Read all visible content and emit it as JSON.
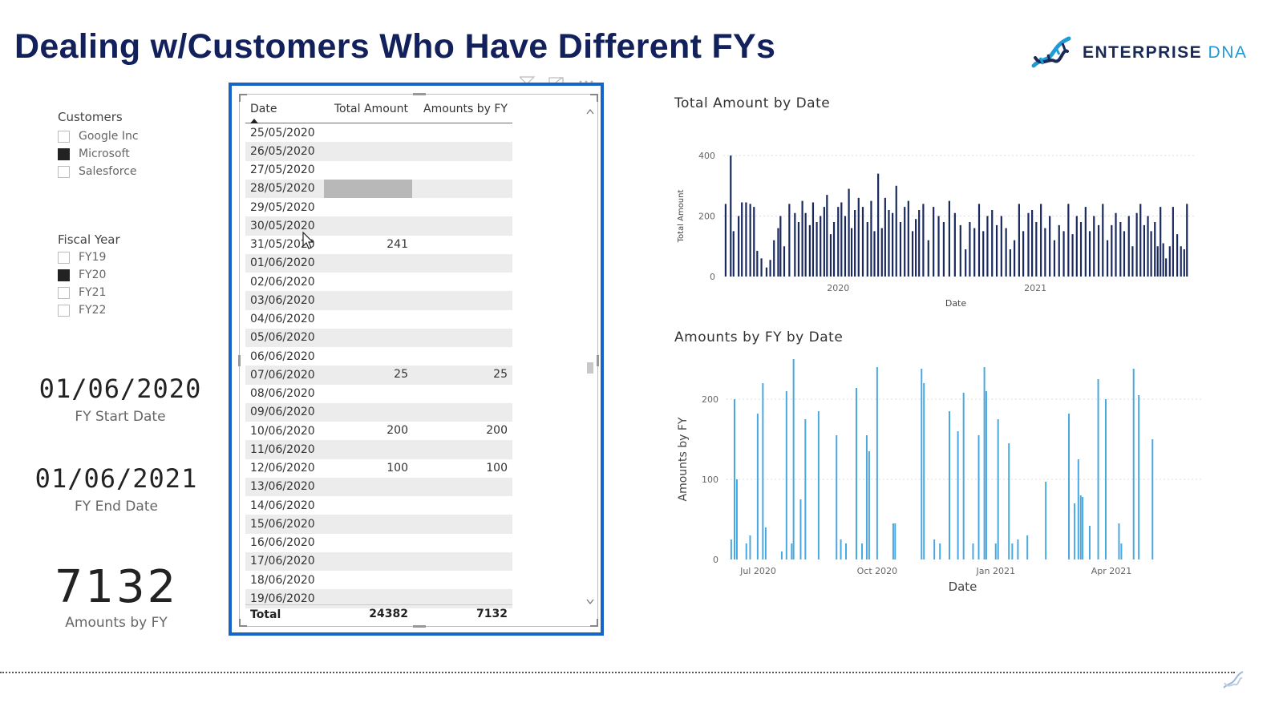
{
  "page": {
    "title": "Dealing w/Customers Who Have Different FYs"
  },
  "brand": {
    "name_bold": "ENTERPRISE",
    "name_light": "DNA",
    "primary_color": "#1a2a55",
    "accent_color": "#1e9bd7"
  },
  "slicers": {
    "customers": {
      "title": "Customers",
      "items": [
        {
          "label": "Google Inc",
          "checked": false
        },
        {
          "label": "Microsoft",
          "checked": true
        },
        {
          "label": "Salesforce",
          "checked": false
        }
      ]
    },
    "fiscal_year": {
      "title": "Fiscal Year",
      "items": [
        {
          "label": "FY19",
          "checked": false
        },
        {
          "label": "FY20",
          "checked": true
        },
        {
          "label": "FY21",
          "checked": false
        },
        {
          "label": "FY22",
          "checked": false
        }
      ]
    }
  },
  "cards": {
    "fy_start": {
      "value": "01/06/2020",
      "label": "FY Start Date"
    },
    "fy_end": {
      "value": "01/06/2021",
      "label": "FY End Date"
    },
    "kpi": {
      "value": "7132",
      "label": "Amounts by FY"
    }
  },
  "table": {
    "headers": {
      "date": "Date",
      "total": "Total Amount",
      "fy": "Amounts by FY"
    },
    "rows": [
      {
        "date": "25/05/2020",
        "total": "",
        "fy": ""
      },
      {
        "date": "26/05/2020",
        "total": "",
        "fy": ""
      },
      {
        "date": "27/05/2020",
        "total": "",
        "fy": ""
      },
      {
        "date": "28/05/2020",
        "total": "",
        "fy": "",
        "highlight": true
      },
      {
        "date": "29/05/2020",
        "total": "",
        "fy": ""
      },
      {
        "date": "30/05/2020",
        "total": "",
        "fy": ""
      },
      {
        "date": "31/05/2020",
        "total": "241",
        "fy": ""
      },
      {
        "date": "01/06/2020",
        "total": "",
        "fy": ""
      },
      {
        "date": "02/06/2020",
        "total": "",
        "fy": ""
      },
      {
        "date": "03/06/2020",
        "total": "",
        "fy": ""
      },
      {
        "date": "04/06/2020",
        "total": "",
        "fy": ""
      },
      {
        "date": "05/06/2020",
        "total": "",
        "fy": ""
      },
      {
        "date": "06/06/2020",
        "total": "",
        "fy": ""
      },
      {
        "date": "07/06/2020",
        "total": "25",
        "fy": "25"
      },
      {
        "date": "08/06/2020",
        "total": "",
        "fy": ""
      },
      {
        "date": "09/06/2020",
        "total": "",
        "fy": ""
      },
      {
        "date": "10/06/2020",
        "total": "200",
        "fy": "200"
      },
      {
        "date": "11/06/2020",
        "total": "",
        "fy": ""
      },
      {
        "date": "12/06/2020",
        "total": "100",
        "fy": "100"
      },
      {
        "date": "13/06/2020",
        "total": "",
        "fy": ""
      },
      {
        "date": "14/06/2020",
        "total": "",
        "fy": ""
      },
      {
        "date": "15/06/2020",
        "total": "",
        "fy": ""
      },
      {
        "date": "16/06/2020",
        "total": "",
        "fy": ""
      },
      {
        "date": "17/06/2020",
        "total": "",
        "fy": ""
      },
      {
        "date": "18/06/2020",
        "total": "",
        "fy": ""
      },
      {
        "date": "19/06/2020",
        "total": "",
        "fy": ""
      }
    ],
    "total": {
      "label": "Total",
      "total": "24382",
      "fy": "7132"
    }
  },
  "chart_data": [
    {
      "type": "bar",
      "title": "Total Amount by Date",
      "xlabel": "Date",
      "ylabel": "Total Amount",
      "ylim": [
        0,
        400
      ],
      "yticks": [
        0,
        200,
        400
      ],
      "xticks": [
        {
          "label": "2020",
          "x": 0.247
        },
        {
          "label": "2021",
          "x": 0.671
        }
      ],
      "color": "#1a2a5e",
      "x": [
        0.005,
        0.016,
        0.022,
        0.033,
        0.04,
        0.049,
        0.058,
        0.066,
        0.073,
        0.082,
        0.093,
        0.101,
        0.109,
        0.118,
        0.123,
        0.131,
        0.142,
        0.154,
        0.162,
        0.17,
        0.177,
        0.186,
        0.193,
        0.201,
        0.209,
        0.217,
        0.223,
        0.231,
        0.238,
        0.247,
        0.254,
        0.262,
        0.27,
        0.276,
        0.283,
        0.291,
        0.3,
        0.31,
        0.318,
        0.325,
        0.333,
        0.341,
        0.348,
        0.356,
        0.364,
        0.372,
        0.381,
        0.39,
        0.398,
        0.407,
        0.414,
        0.421,
        0.43,
        0.441,
        0.452,
        0.463,
        0.474,
        0.486,
        0.498,
        0.51,
        0.521,
        0.53,
        0.54,
        0.55,
        0.559,
        0.568,
        0.578,
        0.588,
        0.598,
        0.608,
        0.617,
        0.626,
        0.636,
        0.645,
        0.656,
        0.664,
        0.673,
        0.683,
        0.692,
        0.702,
        0.712,
        0.722,
        0.732,
        0.742,
        0.751,
        0.76,
        0.769,
        0.779,
        0.788,
        0.797,
        0.807,
        0.816,
        0.826,
        0.835,
        0.844,
        0.854,
        0.862,
        0.872,
        0.88,
        0.889,
        0.897,
        0.905,
        0.913,
        0.92,
        0.928,
        0.934,
        0.94,
        0.946,
        0.952,
        0.96,
        0.967,
        0.976,
        0.984,
        0.991,
        0.997
      ],
      "values": [
        240,
        400,
        150,
        200,
        245,
        245,
        240,
        230,
        85,
        60,
        30,
        55,
        120,
        160,
        200,
        100,
        240,
        210,
        180,
        250,
        210,
        170,
        245,
        180,
        200,
        230,
        270,
        140,
        180,
        230,
        245,
        200,
        290,
        160,
        220,
        260,
        230,
        180,
        250,
        150,
        340,
        160,
        260,
        220,
        210,
        300,
        180,
        230,
        250,
        150,
        190,
        220,
        240,
        120,
        230,
        200,
        180,
        250,
        210,
        170,
        90,
        180,
        160,
        240,
        150,
        200,
        220,
        170,
        200,
        160,
        90,
        120,
        240,
        150,
        210,
        220,
        180,
        240,
        160,
        200,
        120,
        170,
        150,
        240,
        140,
        200,
        180,
        230,
        150,
        200,
        170,
        240,
        120,
        170,
        210,
        180,
        150,
        200,
        100,
        210,
        240,
        170,
        200,
        150,
        180,
        100,
        230,
        110,
        60,
        100,
        230,
        140,
        100,
        90,
        240
      ],
      "values_note": "approximate daily amounts"
    },
    {
      "type": "bar",
      "title": "Amounts by FY by Date",
      "xlabel": "Date",
      "ylabel": "Amounts by FY",
      "ylim": [
        0,
        250
      ],
      "yticks": [
        0,
        100,
        200
      ],
      "xticks": [
        {
          "label": "Jul 2020",
          "x": 0.067
        },
        {
          "label": "Oct 2020",
          "x": 0.319
        },
        {
          "label": "Jan 2021",
          "x": 0.57
        },
        {
          "label": "Apr 2021",
          "x": 0.815
        }
      ],
      "color": "#4aa8e0",
      "x": [
        0.01,
        0.017,
        0.022,
        0.042,
        0.05,
        0.066,
        0.077,
        0.083,
        0.117,
        0.127,
        0.138,
        0.142,
        0.157,
        0.167,
        0.195,
        0.233,
        0.242,
        0.253,
        0.275,
        0.287,
        0.297,
        0.302,
        0.319,
        0.353,
        0.357,
        0.413,
        0.418,
        0.44,
        0.452,
        0.472,
        0.49,
        0.502,
        0.522,
        0.534,
        0.546,
        0.55,
        0.57,
        0.575,
        0.598,
        0.605,
        0.617,
        0.637,
        0.676,
        0.725,
        0.737,
        0.745,
        0.75,
        0.754,
        0.769,
        0.787,
        0.803,
        0.831,
        0.836,
        0.862,
        0.873,
        0.902
      ],
      "values": [
        25,
        200,
        100,
        20,
        30,
        182,
        220,
        40,
        10,
        210,
        20,
        250,
        75,
        175,
        185,
        155,
        25,
        20,
        214,
        20,
        155,
        135,
        240,
        45,
        45,
        238,
        220,
        25,
        20,
        185,
        160,
        208,
        20,
        155,
        240,
        210,
        20,
        175,
        145,
        20,
        25,
        30,
        97,
        182,
        70,
        125,
        80,
        78,
        42,
        225,
        200,
        45,
        20,
        238,
        205,
        150
      ],
      "values_note": "approximate daily amounts within FY20"
    }
  ]
}
